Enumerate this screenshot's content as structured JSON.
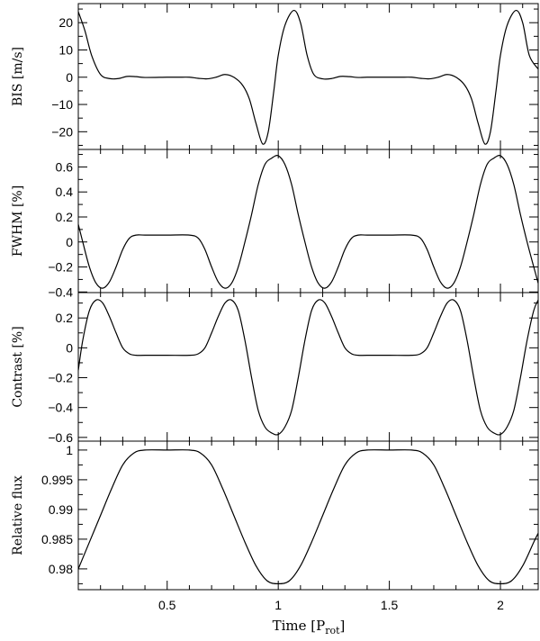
{
  "chart_data": {
    "type": "line",
    "xlabel": "Time [P",
    "xlabel_sub": "rot",
    "xlabel_close": "]",
    "xlim": [
      0.1,
      2.17
    ],
    "x_ticks": [
      0.5,
      1,
      1.5,
      2
    ],
    "x_tick_labels": [
      "0.5",
      "1",
      "1.5",
      "2"
    ],
    "line_color": "#000000",
    "panels": [
      {
        "id": "bis",
        "ylabel": "BIS [m/s]",
        "ylim": [
          -26.5,
          27
        ],
        "y_ticks": [
          -20,
          -10,
          0,
          10,
          20
        ],
        "y_tick_labels": [
          "−20",
          "−10",
          "0",
          "10",
          "20"
        ],
        "series": {
          "x": [
            0.1,
            0.13,
            0.16,
            0.2,
            0.24,
            0.28,
            0.32,
            0.36,
            0.4,
            0.5,
            0.55,
            0.6,
            0.64,
            0.68,
            0.72,
            0.76,
            0.8,
            0.84,
            0.87,
            0.9,
            0.93,
            0.955,
            0.98,
            1.0,
            1.03,
            1.07,
            1.1,
            1.13,
            1.16,
            1.2,
            1.24,
            1.28,
            1.32,
            1.36,
            1.4,
            1.5,
            1.55,
            1.6,
            1.64,
            1.68,
            1.72,
            1.76,
            1.8,
            1.84,
            1.87,
            1.9,
            1.93,
            1.955,
            1.98,
            2.0,
            2.03,
            2.07,
            2.1,
            2.13,
            2.17
          ],
          "y": [
            24,
            17,
            8,
            1,
            -0.5,
            -0.5,
            0.3,
            0.2,
            -0.1,
            0,
            0,
            0,
            -0.4,
            -0.6,
            0,
            1,
            0,
            -3,
            -8,
            -17,
            -24.5,
            -20,
            -5,
            8,
            19,
            24.5,
            20,
            8,
            1,
            -0.6,
            -0.5,
            0.3,
            0.2,
            -0.1,
            0,
            0,
            0,
            0,
            -0.4,
            -0.6,
            0,
            1,
            0,
            -3,
            -8,
            -17,
            -24.5,
            -20,
            -5,
            8,
            19,
            24.5,
            20,
            8,
            3
          ]
        }
      },
      {
        "id": "fwhm",
        "ylabel": "FWHM [%]",
        "ylim": [
          -0.405,
          0.74
        ],
        "y_ticks": [
          -0.4,
          -0.2,
          0,
          0.2,
          0.4,
          0.6
        ],
        "y_tick_labels": [
          "−0.4",
          "−0.2",
          "0",
          "0.2",
          "0.4",
          "0.6"
        ],
        "series": {
          "x": [
            0.1,
            0.12,
            0.15,
            0.18,
            0.21,
            0.24,
            0.27,
            0.3,
            0.33,
            0.36,
            0.4,
            0.5,
            0.6,
            0.64,
            0.67,
            0.7,
            0.73,
            0.76,
            0.79,
            0.82,
            0.85,
            0.88,
            0.91,
            0.94,
            0.97,
            1.0,
            1.03,
            1.06,
            1.09,
            1.12,
            1.15,
            1.18,
            1.21,
            1.24,
            1.27,
            1.3,
            1.33,
            1.36,
            1.4,
            1.5,
            1.6,
            1.64,
            1.67,
            1.7,
            1.73,
            1.76,
            1.79,
            1.82,
            1.85,
            1.88,
            1.91,
            1.94,
            1.97,
            2.0,
            2.03,
            2.06,
            2.09,
            2.12,
            2.15,
            2.17
          ],
          "y": [
            0.14,
            0,
            -0.2,
            -0.33,
            -0.37,
            -0.32,
            -0.2,
            -0.06,
            0.03,
            0.055,
            0.055,
            0.055,
            0.055,
            0.03,
            -0.06,
            -0.2,
            -0.32,
            -0.37,
            -0.33,
            -0.2,
            0,
            0.22,
            0.46,
            0.62,
            0.67,
            0.69,
            0.62,
            0.46,
            0.22,
            0,
            -0.2,
            -0.33,
            -0.37,
            -0.32,
            -0.2,
            -0.06,
            0.03,
            0.055,
            0.055,
            0.055,
            0.055,
            0.03,
            -0.06,
            -0.2,
            -0.32,
            -0.37,
            -0.33,
            -0.2,
            0,
            0.22,
            0.46,
            0.62,
            0.67,
            0.69,
            0.62,
            0.46,
            0.22,
            0,
            -0.2,
            -0.33
          ]
        }
      },
      {
        "id": "contrast",
        "ylabel": "Contrast [%]",
        "ylim": [
          -0.625,
          0.37
        ],
        "y_ticks": [
          -0.6,
          -0.4,
          -0.2,
          0,
          0.2
        ],
        "y_tick_labels": [
          "−0.6",
          "−0.4",
          "−0.2",
          "0",
          "0.2"
        ],
        "series": {
          "x": [
            0.1,
            0.12,
            0.15,
            0.18,
            0.21,
            0.24,
            0.27,
            0.3,
            0.33,
            0.36,
            0.4,
            0.5,
            0.6,
            0.64,
            0.67,
            0.7,
            0.73,
            0.76,
            0.79,
            0.82,
            0.85,
            0.88,
            0.91,
            0.94,
            0.97,
            1.0,
            1.03,
            1.06,
            1.09,
            1.12,
            1.15,
            1.18,
            1.21,
            1.24,
            1.27,
            1.3,
            1.33,
            1.36,
            1.4,
            1.5,
            1.6,
            1.64,
            1.67,
            1.7,
            1.73,
            1.76,
            1.79,
            1.82,
            1.85,
            1.88,
            1.91,
            1.94,
            1.97,
            2.0,
            2.03,
            2.06,
            2.09,
            2.12,
            2.15,
            2.17
          ],
          "y": [
            -0.15,
            0.05,
            0.25,
            0.32,
            0.3,
            0.21,
            0.1,
            0,
            -0.04,
            -0.05,
            -0.05,
            -0.05,
            -0.05,
            -0.04,
            0,
            0.1,
            0.21,
            0.3,
            0.32,
            0.25,
            0.05,
            -0.2,
            -0.42,
            -0.53,
            -0.57,
            -0.58,
            -0.53,
            -0.42,
            -0.2,
            0.05,
            0.25,
            0.32,
            0.3,
            0.21,
            0.1,
            0,
            -0.04,
            -0.05,
            -0.05,
            -0.05,
            -0.05,
            -0.04,
            0,
            0.1,
            0.21,
            0.3,
            0.32,
            0.25,
            0.05,
            -0.2,
            -0.42,
            -0.53,
            -0.57,
            -0.58,
            -0.53,
            -0.42,
            -0.2,
            0.05,
            0.25,
            0.32
          ]
        }
      },
      {
        "id": "flux",
        "ylabel": "Relative flux",
        "ylim": [
          0.9765,
          1.0015
        ],
        "y_ticks": [
          0.98,
          0.985,
          0.99,
          0.995,
          1
        ],
        "y_tick_labels": [
          "0.98",
          "0.985",
          "0.99",
          "0.995",
          "1"
        ],
        "series": {
          "x": [
            0.1,
            0.15,
            0.2,
            0.25,
            0.3,
            0.35,
            0.4,
            0.5,
            0.6,
            0.65,
            0.7,
            0.75,
            0.8,
            0.85,
            0.9,
            0.95,
            1.0,
            1.05,
            1.1,
            1.15,
            1.2,
            1.25,
            1.3,
            1.35,
            1.4,
            1.5,
            1.6,
            1.65,
            1.7,
            1.75,
            1.8,
            1.85,
            1.9,
            1.95,
            2.0,
            2.05,
            2.1,
            2.15,
            2.17
          ],
          "y": [
            0.98,
            0.9845,
            0.989,
            0.9935,
            0.9975,
            0.9995,
            1.0,
            1.0,
            1.0,
            0.9995,
            0.9975,
            0.9935,
            0.989,
            0.9845,
            0.9805,
            0.978,
            0.9775,
            0.978,
            0.9805,
            0.9845,
            0.989,
            0.9935,
            0.9975,
            0.9995,
            1.0,
            1.0,
            1.0,
            0.9995,
            0.9975,
            0.9935,
            0.989,
            0.9845,
            0.9805,
            0.978,
            0.9775,
            0.978,
            0.9805,
            0.9845,
            0.986
          ]
        }
      }
    ]
  }
}
